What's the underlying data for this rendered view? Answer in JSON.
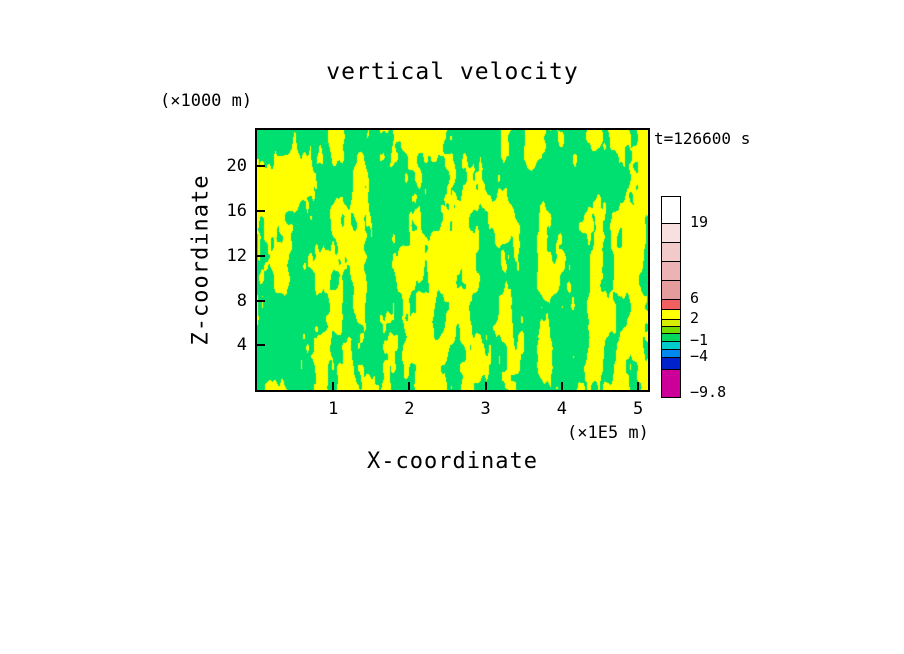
{
  "chart_data": {
    "type": "heatmap",
    "title": "vertical velocity",
    "timestamp_label": "t=126600 s",
    "xlabel": "X-coordinate",
    "ylabel": "Z-coordinate",
    "x_units_label": "(×1E5 m)",
    "y_units_label": "(×1000 m)",
    "xlim": [
      0,
      5.13
    ],
    "ylim": [
      0,
      23.25
    ],
    "x_ticks": [
      1,
      2,
      3,
      4,
      5
    ],
    "y_ticks": [
      4,
      8,
      12,
      16,
      20
    ],
    "grid": false,
    "legend_position": "right",
    "field": {
      "description": "two-tone filled contour field of vertical velocity (positive regions yellow, negative regions green), vertically elongated cellular pattern",
      "positive_color": "#ffff00",
      "negative_color": "#00e070",
      "threshold": 0.5
    },
    "colorbar": {
      "segments": [
        {
          "color": "#ffffff",
          "height": 26
        },
        {
          "color": "#f8e0e0",
          "height": 19
        },
        {
          "color": "#f2caca",
          "height": 19
        },
        {
          "color": "#ebb3b3",
          "height": 19
        },
        {
          "color": "#e49c9c",
          "height": 19
        },
        {
          "color": "#f06060",
          "height": 10
        },
        {
          "color": "#ffff00",
          "height": 10
        },
        {
          "color": "#d8ee00",
          "height": 7
        },
        {
          "color": "#70dc00",
          "height": 7
        },
        {
          "color": "#00d860",
          "height": 8
        },
        {
          "color": "#00cccc",
          "height": 8
        },
        {
          "color": "#0088ee",
          "height": 8
        },
        {
          "color": "#0022cc",
          "height": 12
        },
        {
          "color": "#cc0099",
          "height": 28
        }
      ],
      "labels": [
        {
          "text": "19",
          "offset": 26
        },
        {
          "text": "6",
          "offset": 102
        },
        {
          "text": "2",
          "offset": 122
        },
        {
          "text": "−1",
          "offset": 144
        },
        {
          "text": "−4",
          "offset": 160
        },
        {
          "text": "−9.8",
          "offset": 196
        }
      ]
    }
  }
}
